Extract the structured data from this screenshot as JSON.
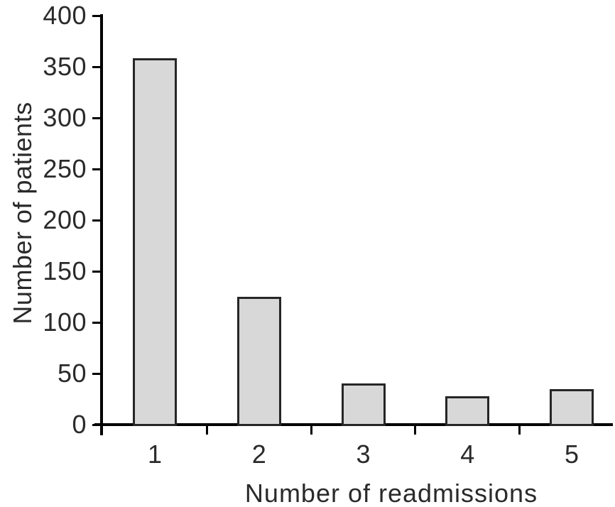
{
  "figure": {
    "background": "#ffffff"
  },
  "chart_data": {
    "type": "bar",
    "categories": [
      "1",
      "2",
      "3",
      "4",
      "5"
    ],
    "values": [
      358,
      125,
      40,
      28,
      35
    ],
    "xlabel": "Number of readmissions",
    "ylabel": "Number of patients",
    "ylim": [
      0,
      400
    ],
    "yticks": [
      0,
      50,
      100,
      150,
      200,
      250,
      300,
      350,
      400
    ],
    "grid": false,
    "legend": "none",
    "bar_fill": "#d8d8d8",
    "bar_border": "#262626",
    "axis_color": "#000000",
    "text_color": "#2a2a2a"
  }
}
